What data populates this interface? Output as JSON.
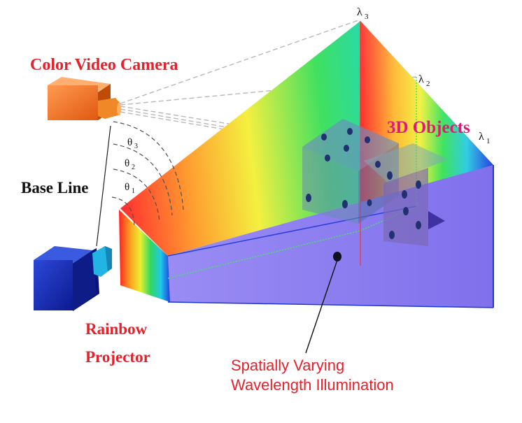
{
  "labels": {
    "camera": "Color Video Camera",
    "objects": "3D Objects",
    "base_line": "Base Line",
    "projector_line1": "Rainbow",
    "projector_line2": "Projector",
    "illumination_line1": "Spatially Varying",
    "illumination_line2": "Wavelength Illumination",
    "lambda_symbol": "λ",
    "lambda1_sub": "1",
    "lambda2_sub": "2",
    "lambda3_sub": "3",
    "theta_symbol": "θ",
    "theta1_sub": "1",
    "theta2_sub": "2",
    "theta3_sub": "3"
  },
  "colors": {
    "label_red": "#e8202a",
    "label_magenta": "#e0197d",
    "camera_body": "#f07020",
    "projector_body": "#1830b8",
    "projector_lens": "#20b0e0",
    "floor": "#8a7cf0",
    "object": "#7a70b8"
  }
}
